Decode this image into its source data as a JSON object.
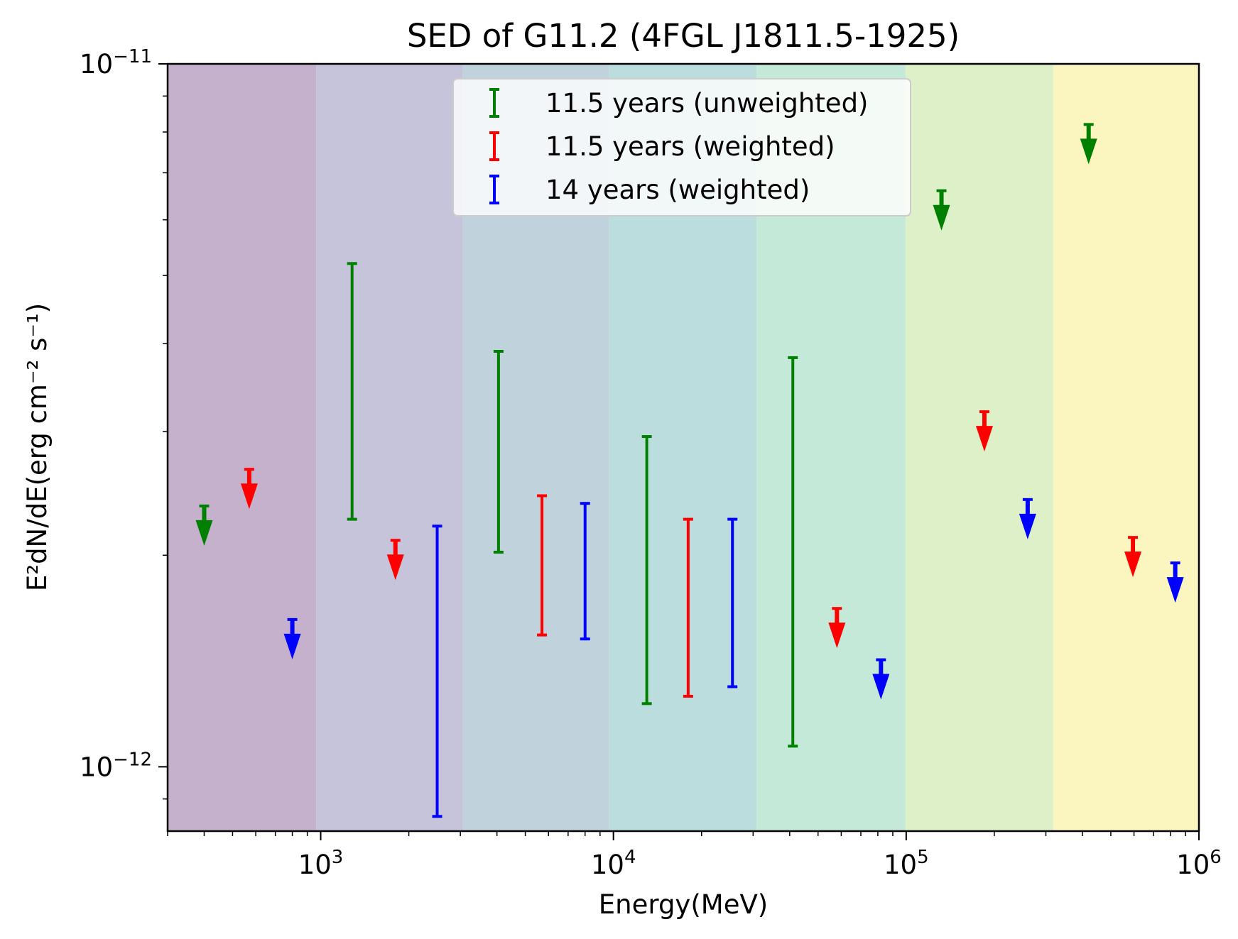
{
  "chart_data": {
    "type": "scatter",
    "title": "SED of G11.2 (4FGL J1811.5-1925)",
    "xlabel": "Energy(MeV)",
    "ylabel": "E²dN/dE(erg cm⁻² s⁻¹)",
    "xscale": "log",
    "yscale": "log",
    "xlim": [
      300,
      1000000
    ],
    "ylim": [
      8.1e-13,
      1e-11
    ],
    "x_ticks": [
      {
        "value": 1000,
        "base": "10",
        "exp": "3"
      },
      {
        "value": 10000,
        "base": "10",
        "exp": "4"
      },
      {
        "value": 100000,
        "base": "10",
        "exp": "5"
      },
      {
        "value": 1000000,
        "base": "10",
        "exp": "6"
      }
    ],
    "y_ticks": [
      {
        "value": 1e-11,
        "base": "10",
        "exp": "−11"
      },
      {
        "value": 1e-12,
        "base": "10",
        "exp": "−12"
      }
    ],
    "bands": [
      {
        "from": 300,
        "to": 966,
        "color": "#c5b1cb"
      },
      {
        "from": 966,
        "to": 3060,
        "color": "#c6c4da"
      },
      {
        "from": 3060,
        "to": 9680,
        "color": "#c0d2dc"
      },
      {
        "from": 9680,
        "to": 30800,
        "color": "#bcdddd"
      },
      {
        "from": 30800,
        "to": 99500,
        "color": "#c5e9d8"
      },
      {
        "from": 99500,
        "to": 318000,
        "color": "#ddf0c8"
      },
      {
        "from": 318000,
        "to": 1000000,
        "color": "#fbf6bf"
      }
    ],
    "legend": {
      "position": "top-center",
      "entries": [
        {
          "label": "11.5 years (unweighted)",
          "color": "#008000"
        },
        {
          "label": "11.5 years (weighted)",
          "color": "#ff0000"
        },
        {
          "label": "14 years (weighted)",
          "color": "#0000ff"
        }
      ]
    },
    "series": [
      {
        "name": "11.5 years (unweighted)",
        "color": "#008000",
        "upper_limits": [
          {
            "x": 400,
            "y": 2.35e-12
          },
          {
            "x": 132000,
            "y": 6.6e-12
          },
          {
            "x": 420000,
            "y": 8.2e-12
          }
        ],
        "error_bars": [
          {
            "x": 1280,
            "low": 2.25e-12,
            "high": 5.2e-12
          },
          {
            "x": 4050,
            "low": 2.02e-12,
            "high": 3.9e-12
          },
          {
            "x": 13000,
            "low": 1.23e-12,
            "high": 2.95e-12
          },
          {
            "x": 41000,
            "low": 1.07e-12,
            "high": 3.82e-12
          }
        ]
      },
      {
        "name": "11.5 years (weighted)",
        "color": "#ff0000",
        "upper_limits": [
          {
            "x": 570,
            "y": 2.65e-12
          },
          {
            "x": 1800,
            "y": 2.1e-12
          },
          {
            "x": 58000,
            "y": 1.68e-12
          },
          {
            "x": 185000,
            "y": 3.2e-12
          },
          {
            "x": 595000,
            "y": 2.12e-12
          }
        ],
        "error_bars": [
          {
            "x": 5700,
            "low": 1.54e-12,
            "high": 2.43e-12
          },
          {
            "x": 18000,
            "low": 1.26e-12,
            "high": 2.25e-12
          }
        ]
      },
      {
        "name": "14 years (weighted)",
        "color": "#0000ff",
        "upper_limits": [
          {
            "x": 800,
            "y": 1.62e-12
          },
          {
            "x": 82000,
            "y": 1.42e-12
          },
          {
            "x": 260000,
            "y": 2.4e-12
          },
          {
            "x": 830000,
            "y": 1.95e-12
          }
        ],
        "error_bars": [
          {
            "x": 2500,
            "low": 8.5e-13,
            "high": 2.2e-12
          },
          {
            "x": 8000,
            "low": 1.52e-12,
            "high": 2.37e-12
          },
          {
            "x": 25500,
            "low": 1.3e-12,
            "high": 2.25e-12
          }
        ]
      }
    ]
  }
}
